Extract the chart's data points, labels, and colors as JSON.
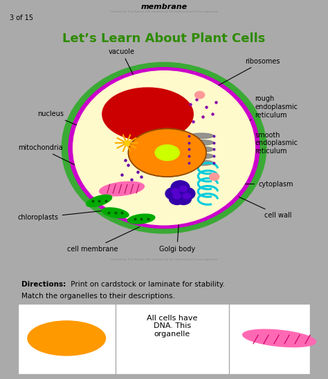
{
  "title": "Let’s Learn About Plant Cells",
  "title_color": "#2e8b00",
  "title_fontsize": 13,
  "header_text": "membrane",
  "page_text": "3 of 15",
  "credit_text": "Created by This Sweet Life exclusively for Homeschool Encouragement",
  "cell_wall_color": "#3aaa35",
  "cell_membrane_color": "#CC00CC",
  "cytoplasm_color": "#FFFACC",
  "vacuole_color": "#CC0000",
  "nucleus_color": "#FF8800",
  "nucleolus_color": "#CCFF00",
  "mito_color": "#FF69B4",
  "mito_stripe_color": "#AA1155",
  "golgi_color": "#3300AA",
  "golgi_lobe_color": "#5500CC",
  "chloroplast_color": "#00AA00",
  "rer_color": "#888888",
  "ribosome_color": "#8800AA",
  "ser_color": "#00CCDD",
  "pink_dot_color": "#FF9999",
  "star_color": "#FFAA00",
  "star_center_color": "#FFCC00",
  "directions_bold": "Directions:",
  "directions_text1": " Print on cardstock or laminate for stability.",
  "directions_text2": "Match the organelles to their descriptions.",
  "card_text": "All cells have\nDNA. This\norganelle",
  "card_nucleus_color": "#FF9900",
  "card_mito_color": "#FF69B4",
  "card_mito_stripe": "#CC0066",
  "panel_border": "#cccccc",
  "gray_sep": "#888888"
}
